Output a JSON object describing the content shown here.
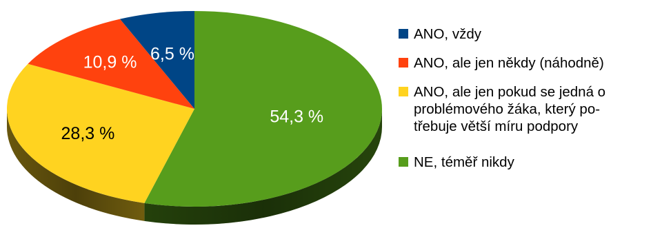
{
  "chart_data": {
    "type": "pie",
    "style": "3d",
    "categories": [
      "ANO, vždy",
      "ANO, ale jen někdy (náhodně)",
      "ANO, ale jen pokud se jedná o problémového žáka, který po-\ntřebuje větší míru podpory",
      "NE, téměř nikdy"
    ],
    "values": [
      6.5,
      10.9,
      28.3,
      54.3
    ],
    "value_labels": [
      "6,5 %",
      "10,9 %",
      "28,3 %",
      "54,3 %"
    ],
    "colors": [
      "#004586",
      "#ff420e",
      "#ffd320",
      "#579d1c"
    ],
    "label_colors": [
      "#ffffff",
      "#ffffff",
      "#000000",
      "#ffffff"
    ],
    "legend_position": "right"
  }
}
